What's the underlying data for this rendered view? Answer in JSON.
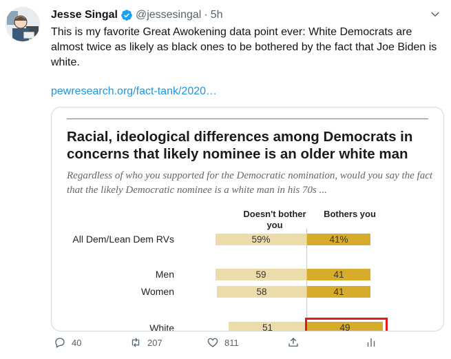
{
  "author": {
    "name": "Jesse Singal",
    "handle": "@jessesingal",
    "separator": "·",
    "time": "5h"
  },
  "tweet": {
    "text": "This is my favorite Great Awokening data point ever: White Democrats are almost twice as likely as black ones to be bothered by the fact that Joe Biden is white.",
    "link": "pewresearch.org/fact-tank/2020…"
  },
  "chart": {
    "title": "Racial, ideological differences among Democrats in concerns that likely nominee is an older white man",
    "subtitle": "Regardless of who you supported for the Democratic nomination, would you say the fact that the likely Democratic nominee is a white man in his 70s ...",
    "col_left": "Doesn't bother you",
    "col_right": "Bothers you",
    "rows": [
      {
        "label": "All Dem/Lean Dem RVs",
        "left": "59%",
        "right": "41%"
      },
      {
        "label": "Men",
        "left": "59",
        "right": "41"
      },
      {
        "label": "Women",
        "left": "58",
        "right": "41"
      },
      {
        "label": "White",
        "left": "51",
        "right": "49"
      }
    ]
  },
  "chart_data": {
    "type": "bar",
    "title": "Racial, ideological differences among Democrats in concerns that likely nominee is an older white man",
    "categories": [
      "All Dem/Lean Dem RVs",
      "Men",
      "Women",
      "White"
    ],
    "series": [
      {
        "name": "Doesn't bother you",
        "values": [
          59,
          59,
          58,
          51
        ]
      },
      {
        "name": "Bothers you",
        "values": [
          41,
          41,
          41,
          49
        ]
      }
    ],
    "colors": {
      "left": "#ecdcab",
      "right": "#d8ac2b",
      "highlight": "#e01b1b"
    }
  },
  "actions": {
    "reply_count": "40",
    "retweet_count": "207",
    "like_count": "811"
  },
  "colors": {
    "link": "#1b95e0",
    "verified": "#1da1f2"
  }
}
